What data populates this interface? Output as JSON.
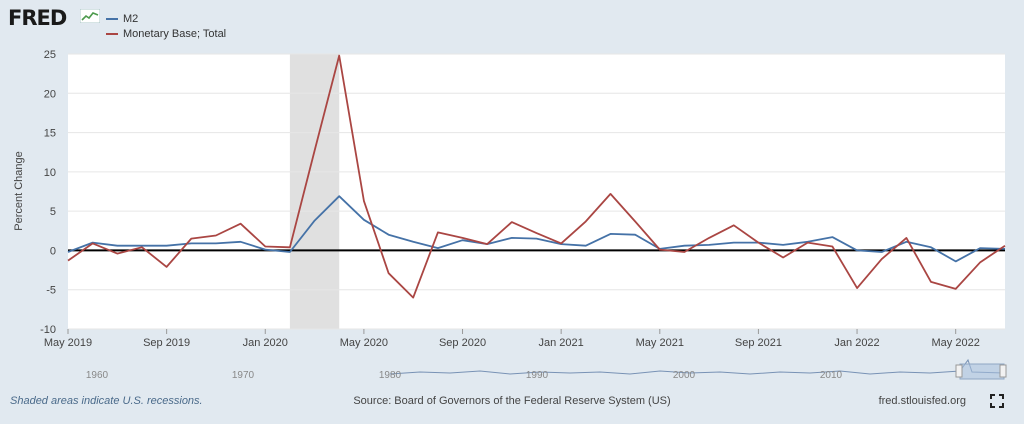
{
  "header": {
    "logo_text": "FRED"
  },
  "legend": {
    "items": [
      {
        "label": "M2",
        "color": "#4572a7"
      },
      {
        "label": "Monetary Base; Total",
        "color": "#aa4643"
      }
    ]
  },
  "chart_data": {
    "type": "line",
    "ylabel": "Percent Change",
    "ylim": [
      -10,
      25
    ],
    "yticks": [
      -10,
      -5,
      0,
      5,
      10,
      15,
      20,
      25
    ],
    "x_labels": [
      "May 2019",
      "Sep 2019",
      "Jan 2020",
      "May 2020",
      "Sep 2020",
      "Jan 2021",
      "May 2021",
      "Sep 2021",
      "Jan 2022",
      "May 2022"
    ],
    "x": [
      "2019-05",
      "2019-06",
      "2019-07",
      "2019-08",
      "2019-09",
      "2019-10",
      "2019-11",
      "2019-12",
      "2020-01",
      "2020-02",
      "2020-03",
      "2020-04",
      "2020-05",
      "2020-06",
      "2020-07",
      "2020-08",
      "2020-09",
      "2020-10",
      "2020-11",
      "2020-12",
      "2021-01",
      "2021-02",
      "2021-03",
      "2021-04",
      "2021-05",
      "2021-06",
      "2021-07",
      "2021-08",
      "2021-09",
      "2021-10",
      "2021-11",
      "2021-12",
      "2022-01",
      "2022-02",
      "2022-03",
      "2022-04",
      "2022-05",
      "2022-06",
      "2022-07"
    ],
    "recessions": [
      {
        "start": "2020-02",
        "end": "2020-04"
      }
    ],
    "grid": true,
    "series": [
      {
        "name": "M2",
        "color": "#4572a7",
        "values": [
          -0.2,
          1.0,
          0.6,
          0.6,
          0.6,
          0.9,
          0.9,
          1.1,
          0.1,
          -0.2,
          3.8,
          6.9,
          3.9,
          2.0,
          1.1,
          0.3,
          1.3,
          0.8,
          1.6,
          1.5,
          0.8,
          0.6,
          2.1,
          2.0,
          0.2,
          0.6,
          0.7,
          1.0,
          1.0,
          0.7,
          1.1,
          1.7,
          0.0,
          -0.2,
          1.1,
          0.4,
          -1.4,
          0.3,
          0.2
        ]
      },
      {
        "name": "Monetary Base; Total",
        "color": "#aa4643",
        "values": [
          -1.3,
          0.9,
          -0.4,
          0.4,
          -2.1,
          1.5,
          1.9,
          3.4,
          0.5,
          0.4,
          12.7,
          24.8,
          6.3,
          -2.9,
          -6.0,
          2.3,
          1.6,
          0.8,
          3.6,
          2.2,
          0.9,
          3.7,
          7.2,
          3.7,
          0.1,
          -0.2,
          1.6,
          3.2,
          1.0,
          -0.9,
          1.0,
          0.5,
          -4.8,
          -1.1,
          1.6,
          -4.0,
          -4.9,
          -1.5,
          0.6
        ]
      }
    ]
  },
  "navigator": {
    "labels": [
      "1960",
      "1970",
      "1980",
      "1990",
      "2000",
      "2010"
    ]
  },
  "footer": {
    "note": "Shaded areas indicate U.S. recessions.",
    "source": "Source: Board of Governors of the Federal Reserve System (US)",
    "site": "fred.stlouisfed.org"
  }
}
